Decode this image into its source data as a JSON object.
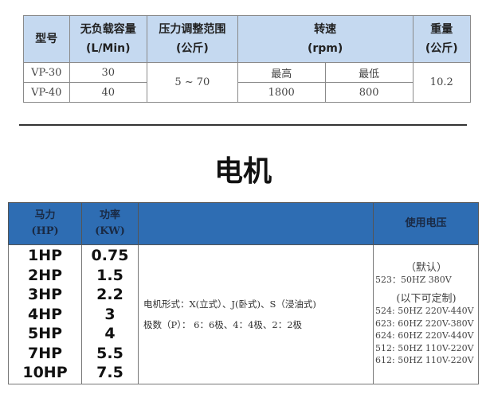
{
  "pump_table": {
    "headers": {
      "model": "型号",
      "capacity": "无负载容量",
      "capacity_unit": "(L/Min)",
      "pressure": "压力调整范围",
      "pressure_unit": "(公斤)",
      "speed": "转速",
      "speed_unit": "(rpm)",
      "weight": "重量",
      "weight_unit": "(公斤)"
    },
    "rows": [
      {
        "model": "VP-30",
        "capacity": "30"
      },
      {
        "model": "VP-40",
        "capacity": "40"
      }
    ],
    "pressure_range": "5 ~ 70",
    "speed_max_label": "最高",
    "speed_min_label": "最低",
    "speed_max": "1800",
    "speed_min": "800",
    "weight": "10.2"
  },
  "section_title": "电机",
  "motor_table": {
    "headers": {
      "hp": "马力",
      "hp_unit": "(HP)",
      "kw": "功率",
      "kw_unit": "(KW)",
      "blank": "",
      "voltage": "使用电压"
    },
    "hp": [
      "1HP",
      "2HP",
      "3HP",
      "4HP",
      "5HP",
      "7HP",
      "10HP"
    ],
    "kw": [
      "0.75",
      "1.5",
      "2.2",
      "3",
      "4",
      "5.5",
      "7.5"
    ],
    "form": "电机形式：X(立式）、J(卧式)、S（浸油式)",
    "poles": "极数（P）： 6：6极、4：4极、2：2极",
    "default_label": "（默认）",
    "default_voltage": "523：50HZ 380V",
    "custom_label": "(以下可定制)",
    "custom_voltages": [
      "524: 50HZ 220V-440V",
      "623: 60HZ 220V-380V",
      "624: 60HZ 220V-440V",
      "512: 50HZ 110V-220V",
      "612: 50HZ 110V-220V"
    ]
  },
  "colors": {
    "pump_header": "#c5d9f0",
    "motor_header": "#2e6db3"
  }
}
